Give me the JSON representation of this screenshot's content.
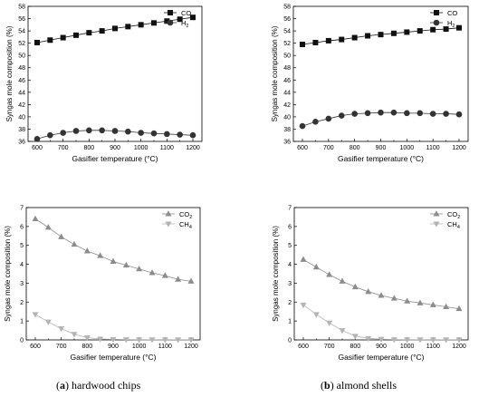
{
  "captions": [
    {
      "open": "(",
      "label": "a",
      "close": ") hardwood chips"
    },
    {
      "open": "(",
      "label": "b",
      "close": ") almond shells"
    }
  ],
  "chart_data": [
    {
      "type": "line",
      "xlabel": "Gasifier temperature (°C)",
      "ylabel": "Syngas mole composition (%)",
      "xlim": [
        600,
        1200
      ],
      "ylim": [
        36,
        58
      ],
      "xticks": [
        600,
        700,
        800,
        900,
        1000,
        1100,
        1200
      ],
      "yticks": [
        36,
        38,
        40,
        42,
        44,
        46,
        48,
        50,
        52,
        54,
        56,
        58
      ],
      "legend": "top-right",
      "x": [
        600,
        650,
        700,
        750,
        800,
        850,
        900,
        950,
        1000,
        1050,
        1100,
        1150,
        1200
      ],
      "series": [
        {
          "name": "CO",
          "marker": "square",
          "color": "#111111",
          "values": [
            52.1,
            52.5,
            52.9,
            53.3,
            53.7,
            54.0,
            54.4,
            54.7,
            55.0,
            55.3,
            55.6,
            55.9,
            56.2
          ]
        },
        {
          "name": "H",
          "sub": "2",
          "marker": "circle",
          "color": "#333333",
          "values": [
            36.4,
            37.0,
            37.4,
            37.7,
            37.8,
            37.8,
            37.7,
            37.6,
            37.4,
            37.3,
            37.2,
            37.1,
            37.0
          ]
        }
      ]
    },
    {
      "type": "line",
      "xlabel": "Gasifier temperature (°C)",
      "ylabel": "Syngas mole composition (%)",
      "xlim": [
        600,
        1200
      ],
      "ylim": [
        36,
        58
      ],
      "xticks": [
        600,
        700,
        800,
        900,
        1000,
        1100,
        1200
      ],
      "yticks": [
        36,
        38,
        40,
        42,
        44,
        46,
        48,
        50,
        52,
        54,
        56,
        58
      ],
      "legend": "top-right",
      "x": [
        600,
        650,
        700,
        750,
        800,
        850,
        900,
        950,
        1000,
        1050,
        1100,
        1150,
        1200
      ],
      "series": [
        {
          "name": "CO",
          "marker": "square",
          "color": "#111111",
          "values": [
            51.8,
            52.1,
            52.4,
            52.6,
            52.9,
            53.2,
            53.4,
            53.6,
            53.8,
            54.0,
            54.2,
            54.3,
            54.5
          ]
        },
        {
          "name": "H",
          "sub": "2",
          "marker": "circle",
          "color": "#333333",
          "values": [
            38.5,
            39.2,
            39.7,
            40.2,
            40.5,
            40.6,
            40.7,
            40.7,
            40.6,
            40.6,
            40.5,
            40.5,
            40.4
          ]
        }
      ]
    },
    {
      "type": "line",
      "xlabel": "Gasifier temperature (°C)",
      "ylabel": "Syngas mole composition (%)",
      "xlim": [
        600,
        1200
      ],
      "ylim": [
        0,
        7
      ],
      "xticks": [
        600,
        700,
        800,
        900,
        1000,
        1100,
        1200
      ],
      "yticks": [
        0,
        1,
        2,
        3,
        4,
        5,
        6,
        7
      ],
      "legend": "top-right",
      "x": [
        600,
        650,
        700,
        750,
        800,
        850,
        900,
        950,
        1000,
        1050,
        1100,
        1150,
        1200
      ],
      "series": [
        {
          "name": "CO",
          "sub": "2",
          "marker": "triangle-up",
          "color": "#8c8c8c",
          "values": [
            6.4,
            5.95,
            5.45,
            5.05,
            4.7,
            4.45,
            4.15,
            3.95,
            3.75,
            3.55,
            3.4,
            3.2,
            3.1
          ]
        },
        {
          "name": "CH",
          "sub": "4",
          "marker": "triangle-down",
          "color": "#b4b4b4",
          "values": [
            1.35,
            0.95,
            0.6,
            0.3,
            0.12,
            0.05,
            0.03,
            0.02,
            0.01,
            0.01,
            0.01,
            0.01,
            0.01
          ]
        }
      ]
    },
    {
      "type": "line",
      "xlabel": "Gasifier temperature (°C)",
      "ylabel": "Syngas mole composition (%)",
      "xlim": [
        600,
        1200
      ],
      "ylim": [
        0,
        7
      ],
      "xticks": [
        600,
        700,
        800,
        900,
        1000,
        1100,
        1200
      ],
      "yticks": [
        0,
        1,
        2,
        3,
        4,
        5,
        6,
        7
      ],
      "legend": "top-right",
      "x": [
        600,
        650,
        700,
        750,
        800,
        850,
        900,
        950,
        1000,
        1050,
        1100,
        1150,
        1200
      ],
      "series": [
        {
          "name": "CO",
          "sub": "2",
          "marker": "triangle-up",
          "color": "#8c8c8c",
          "values": [
            4.25,
            3.85,
            3.45,
            3.1,
            2.8,
            2.55,
            2.35,
            2.2,
            2.05,
            1.95,
            1.85,
            1.75,
            1.65
          ]
        },
        {
          "name": "CH",
          "sub": "4",
          "marker": "triangle-down",
          "color": "#b4b4b4",
          "values": [
            1.85,
            1.35,
            0.9,
            0.5,
            0.2,
            0.08,
            0.04,
            0.02,
            0.01,
            0.01,
            0.01,
            0.01,
            0.01
          ]
        }
      ]
    }
  ]
}
